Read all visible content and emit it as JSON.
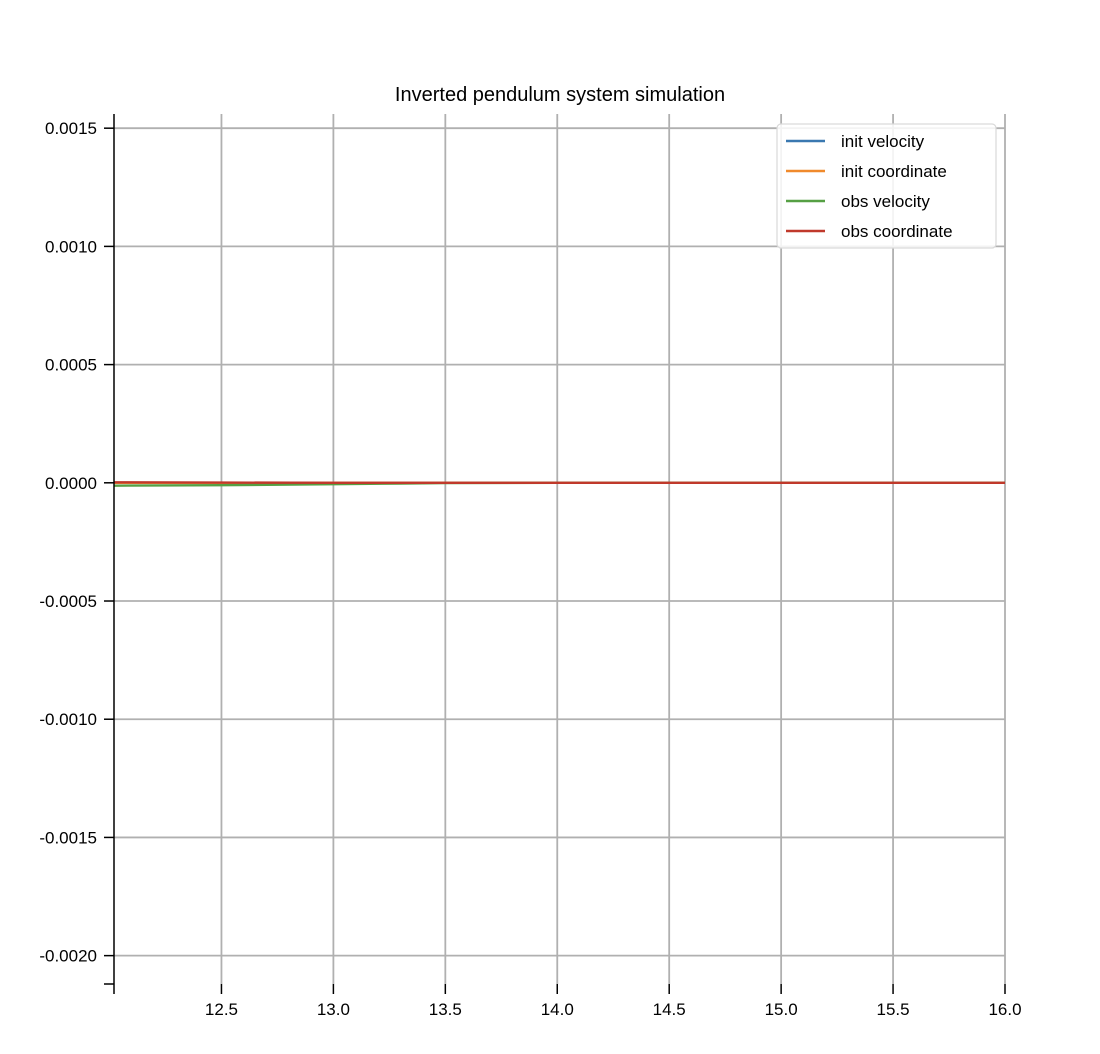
{
  "chart_data": {
    "type": "line",
    "title": "Inverted pendulum system simulation",
    "xlabel": "",
    "ylabel": "",
    "xlim": [
      12.02,
      16.0
    ],
    "ylim": [
      -0.00212,
      0.00156
    ],
    "x_ticks": [
      12.5,
      13.0,
      13.5,
      14.0,
      14.5,
      15.0,
      15.5,
      16.0
    ],
    "x_tick_labels": [
      "12.5",
      "13.0",
      "13.5",
      "14.0",
      "14.5",
      "15.0",
      "15.5",
      "16.0"
    ],
    "y_ticks": [
      0.0015,
      0.001,
      0.0005,
      0.0,
      -0.0005,
      -0.001,
      -0.0015,
      -0.002
    ],
    "y_tick_labels": [
      "0.0015",
      "0.0010",
      "0.0005",
      "0.0000",
      "-0.0005",
      "-0.0010",
      "-0.0015",
      "-0.0020"
    ],
    "grid": true,
    "legend_position": "top-right",
    "series": [
      {
        "name": "init velocity",
        "color": "#3a78b0",
        "x": [
          12.02,
          12.5,
          13.0,
          13.5,
          14.0,
          14.5,
          15.0,
          15.5,
          16.0
        ],
        "y": [
          0.0,
          0.0,
          0.0,
          0.0,
          0.0,
          0.0,
          0.0,
          0.0,
          0.0
        ]
      },
      {
        "name": "init coordinate",
        "color": "#f08a2c",
        "x": [
          12.02,
          12.5,
          13.0,
          13.5,
          14.0,
          14.5,
          15.0,
          15.5,
          16.0
        ],
        "y": [
          0.0,
          0.0,
          0.0,
          0.0,
          0.0,
          0.0,
          0.0,
          0.0,
          0.0
        ]
      },
      {
        "name": "obs velocity",
        "color": "#56a044",
        "x": [
          12.02,
          12.5,
          13.0,
          13.3,
          13.5,
          14.0,
          14.5,
          15.0,
          15.5,
          16.0
        ],
        "y": [
          -1.2e-05,
          -1e-05,
          -6e-06,
          -3e-06,
          -1e-06,
          0.0,
          0.0,
          0.0,
          0.0,
          0.0
        ]
      },
      {
        "name": "obs coordinate",
        "color": "#c0392b",
        "x": [
          12.02,
          12.5,
          13.0,
          13.5,
          14.0,
          14.5,
          15.0,
          15.5,
          16.0
        ],
        "y": [
          2e-06,
          1e-06,
          0.0,
          0.0,
          0.0,
          0.0,
          0.0,
          0.0,
          0.0
        ]
      }
    ]
  }
}
